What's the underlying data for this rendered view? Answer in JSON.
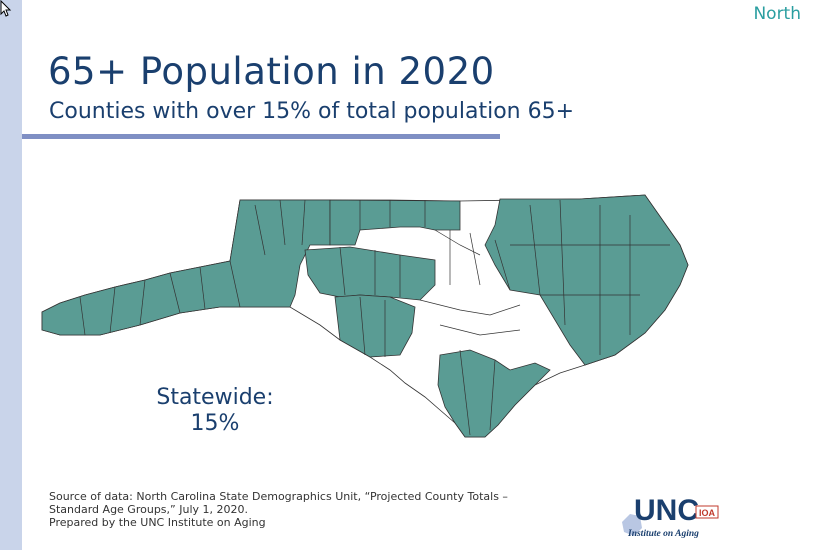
{
  "header": {
    "corner_label": "North",
    "title": "65+ Population in 2020",
    "subtitle": "Counties with over 15% of total population 65+"
  },
  "map": {
    "region": "North Carolina",
    "highlight_color": "#5a9c94",
    "nonhighlight_color": "#ffffff",
    "county_border_color": "#333333"
  },
  "statewide": {
    "label": "Statewide:",
    "value": "15%"
  },
  "source": {
    "line1": "Source of data: North Carolina State Demographics Unit, “Projected County Totals –",
    "line2": "Standard Age Groups,” July 1, 2020.",
    "line3": "Prepared by the UNC Institute on Aging"
  },
  "logo": {
    "text": "UNC",
    "subtext": "Institute on Aging",
    "badge": "IOA"
  },
  "colors": {
    "title": "#1a3f6e",
    "accent_rule": "#7f8fc4",
    "left_bar": "#c9d4ea",
    "corner_label": "#2a9ea0"
  }
}
